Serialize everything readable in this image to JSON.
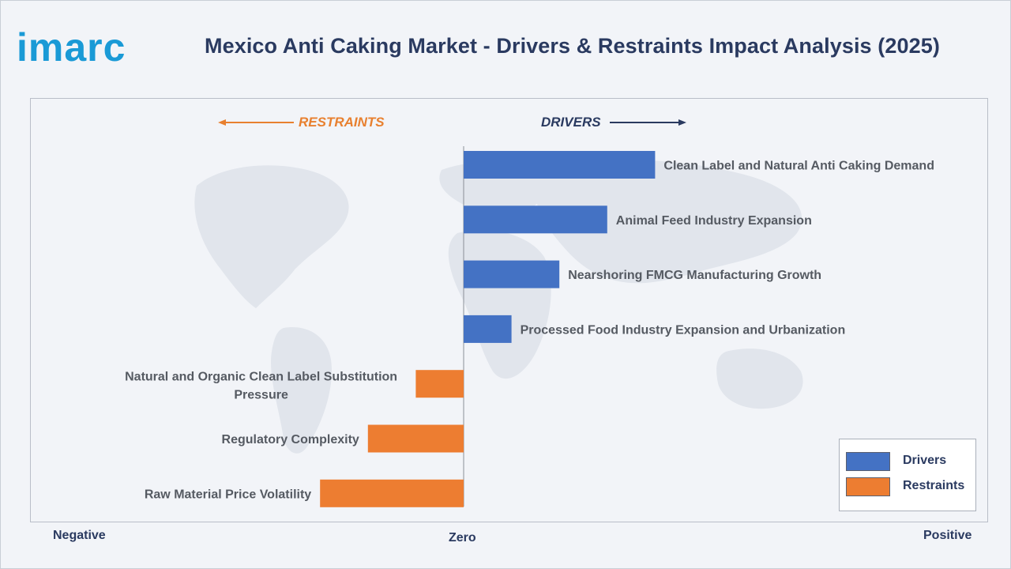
{
  "header": {
    "logo_text": "imarc",
    "title": "Mexico Anti Caking Market - Drivers & Restraints Impact Analysis (2025)"
  },
  "directions": {
    "restraints": "RESTRAINTS",
    "drivers": "DRIVERS"
  },
  "axis": {
    "negative": "Negative",
    "zero": "Zero",
    "positive": "Positive"
  },
  "legend": {
    "drivers": "Drivers",
    "restraints": "Restraints"
  },
  "colors": {
    "drivers": "#4472c4",
    "restraints": "#ed7d31",
    "brand_blue": "#1a9ad6",
    "title": "#2a3a60"
  },
  "chart_data": {
    "type": "bar",
    "orientation": "horizontal",
    "title": "Mexico Anti Caking Market - Drivers & Restraints Impact Analysis (2025)",
    "xlabel": "",
    "ylabel": "",
    "xlim": [
      -5,
      5
    ],
    "grid": false,
    "legend_position": "bottom-right",
    "series": [
      {
        "name": "Drivers",
        "categories": [
          "Clean Label and Natural Anti Caking Demand",
          "Animal Feed Industry Expansion",
          "Nearshoring FMCG Manufacturing Growth",
          "Processed Food Industry Expansion and Urbanization"
        ],
        "values": [
          4,
          3,
          2,
          1
        ]
      },
      {
        "name": "Restraints",
        "categories": [
          "Natural and Organic Clean Label Substitution Pressure",
          "Regulatory Complexity",
          "Raw Material Price Volatility"
        ],
        "values": [
          -1,
          -2,
          -3
        ]
      }
    ]
  }
}
